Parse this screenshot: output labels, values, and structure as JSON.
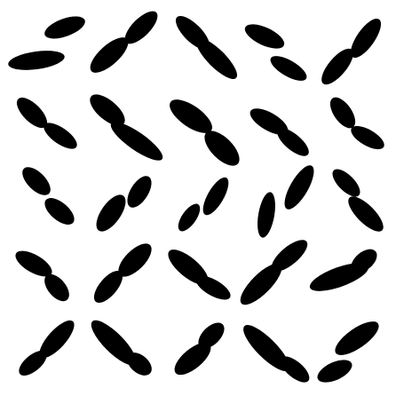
{
  "colors": {
    "background": "#ffffff",
    "shape": "#000000"
  },
  "pattern": {
    "rows": 5,
    "columns": 5,
    "shape": "ellipse-pair"
  }
}
